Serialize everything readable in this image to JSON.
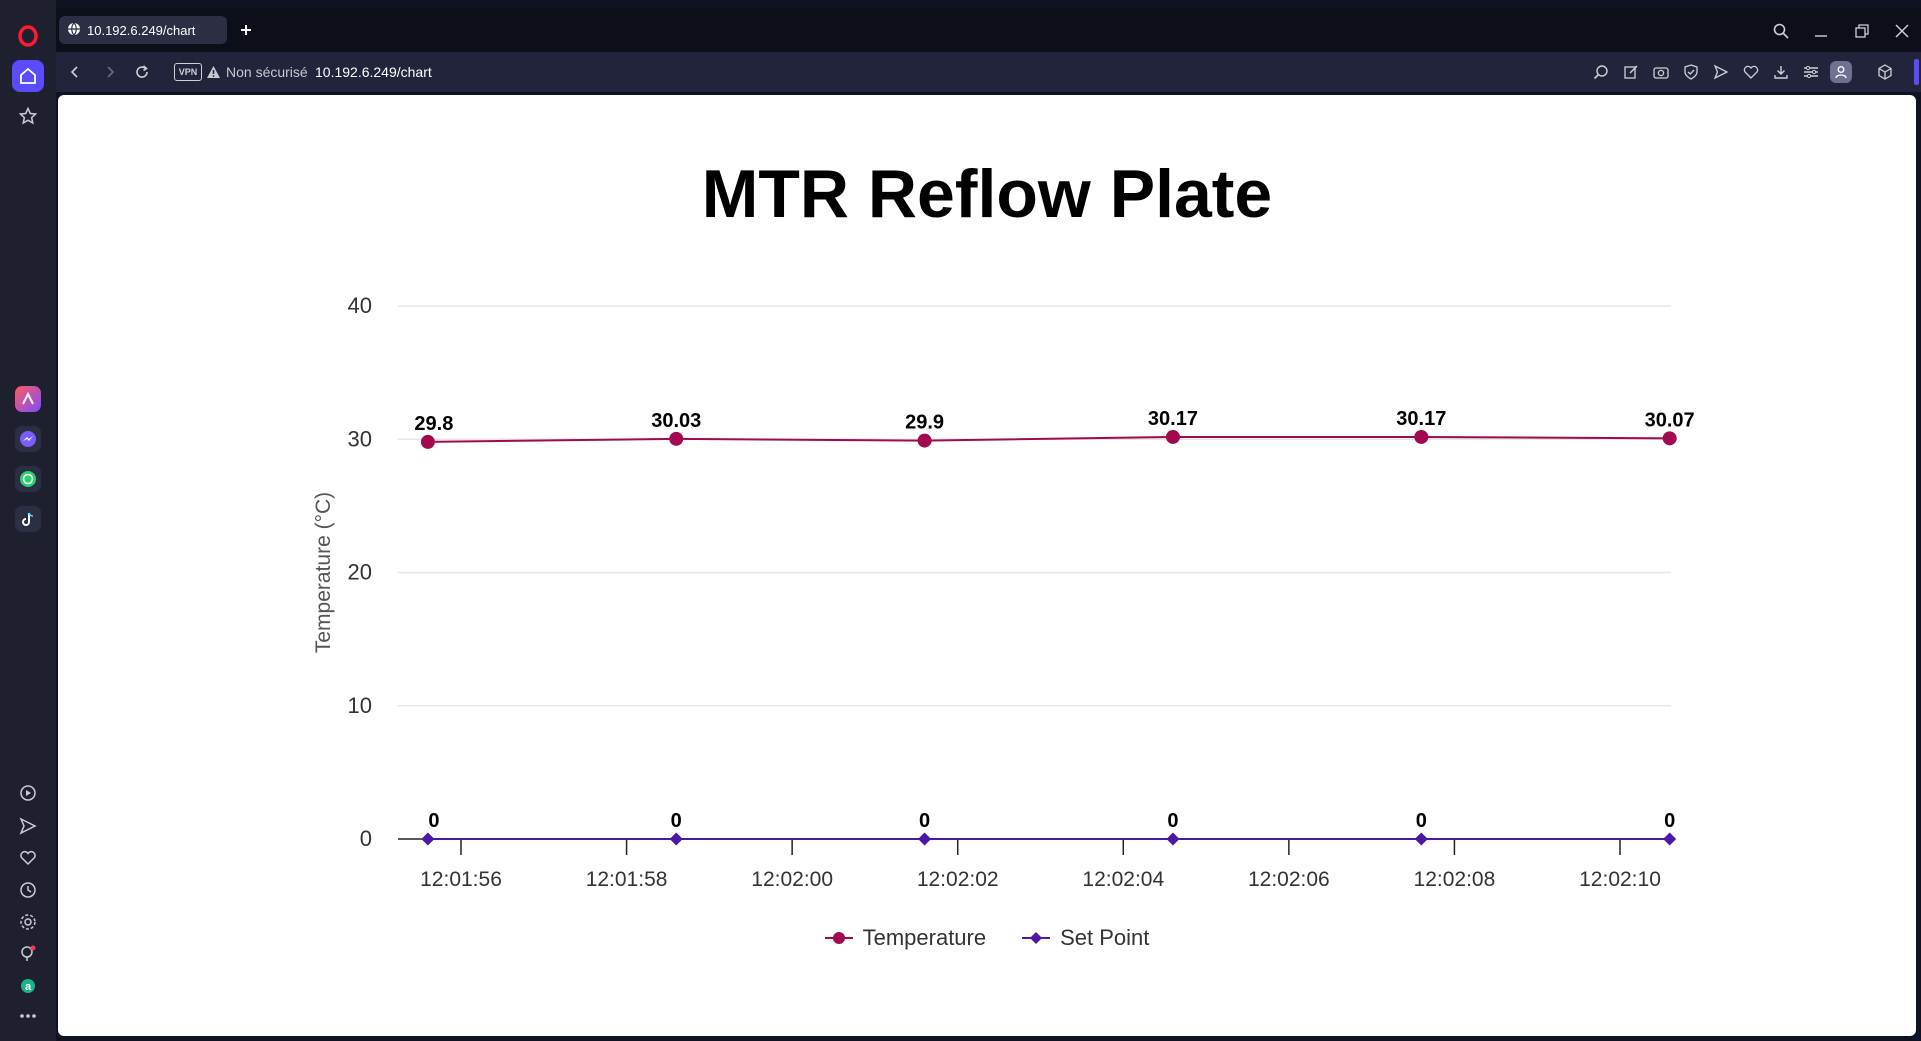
{
  "browser": {
    "tab_title": "10.192.6.249/chart",
    "security_label": "Non sécurisé",
    "url": "10.192.6.249/chart",
    "vpn_label": "VPN",
    "accent_color": "#5b4bff"
  },
  "sidebar": {
    "icons": [
      "opera-logo-icon",
      "home-icon",
      "bookmarks-icon",
      "aria-icon",
      "messenger-icon",
      "whatsapp-icon",
      "tiktok-icon",
      "player-icon",
      "flow-icon",
      "heart-icon",
      "history-icon",
      "settings-icon",
      "tips-icon",
      "extensions-icon",
      "more-icon"
    ]
  },
  "page": {
    "title": "MTR Reflow Plate"
  },
  "chart_data": {
    "type": "line",
    "title": "MTR Reflow Plate",
    "ylabel": "Temperature (°C)",
    "xlabel": "",
    "ylim": [
      0,
      40
    ],
    "yticks": [
      0,
      10,
      20,
      30,
      40
    ],
    "xticks": [
      "12:01:56",
      "12:01:58",
      "12:02:00",
      "12:02:02",
      "12:02:04",
      "12:02:06",
      "12:02:08",
      "12:02:10"
    ],
    "x": [
      "12:01:55.6",
      "12:01:58.6",
      "12:02:01.6",
      "12:02:04.6",
      "12:02:07.6",
      "12:02:10.6"
    ],
    "grid": true,
    "legend_position": "bottom",
    "series": [
      {
        "name": "Temperature",
        "values": [
          29.8,
          30.03,
          29.9,
          30.17,
          30.17,
          30.07
        ],
        "color": "#a3094f",
        "marker": "circle"
      },
      {
        "name": "Set Point",
        "values": [
          0,
          0,
          0,
          0,
          0,
          0
        ],
        "color": "#4c17a6",
        "marker": "diamond"
      }
    ]
  }
}
